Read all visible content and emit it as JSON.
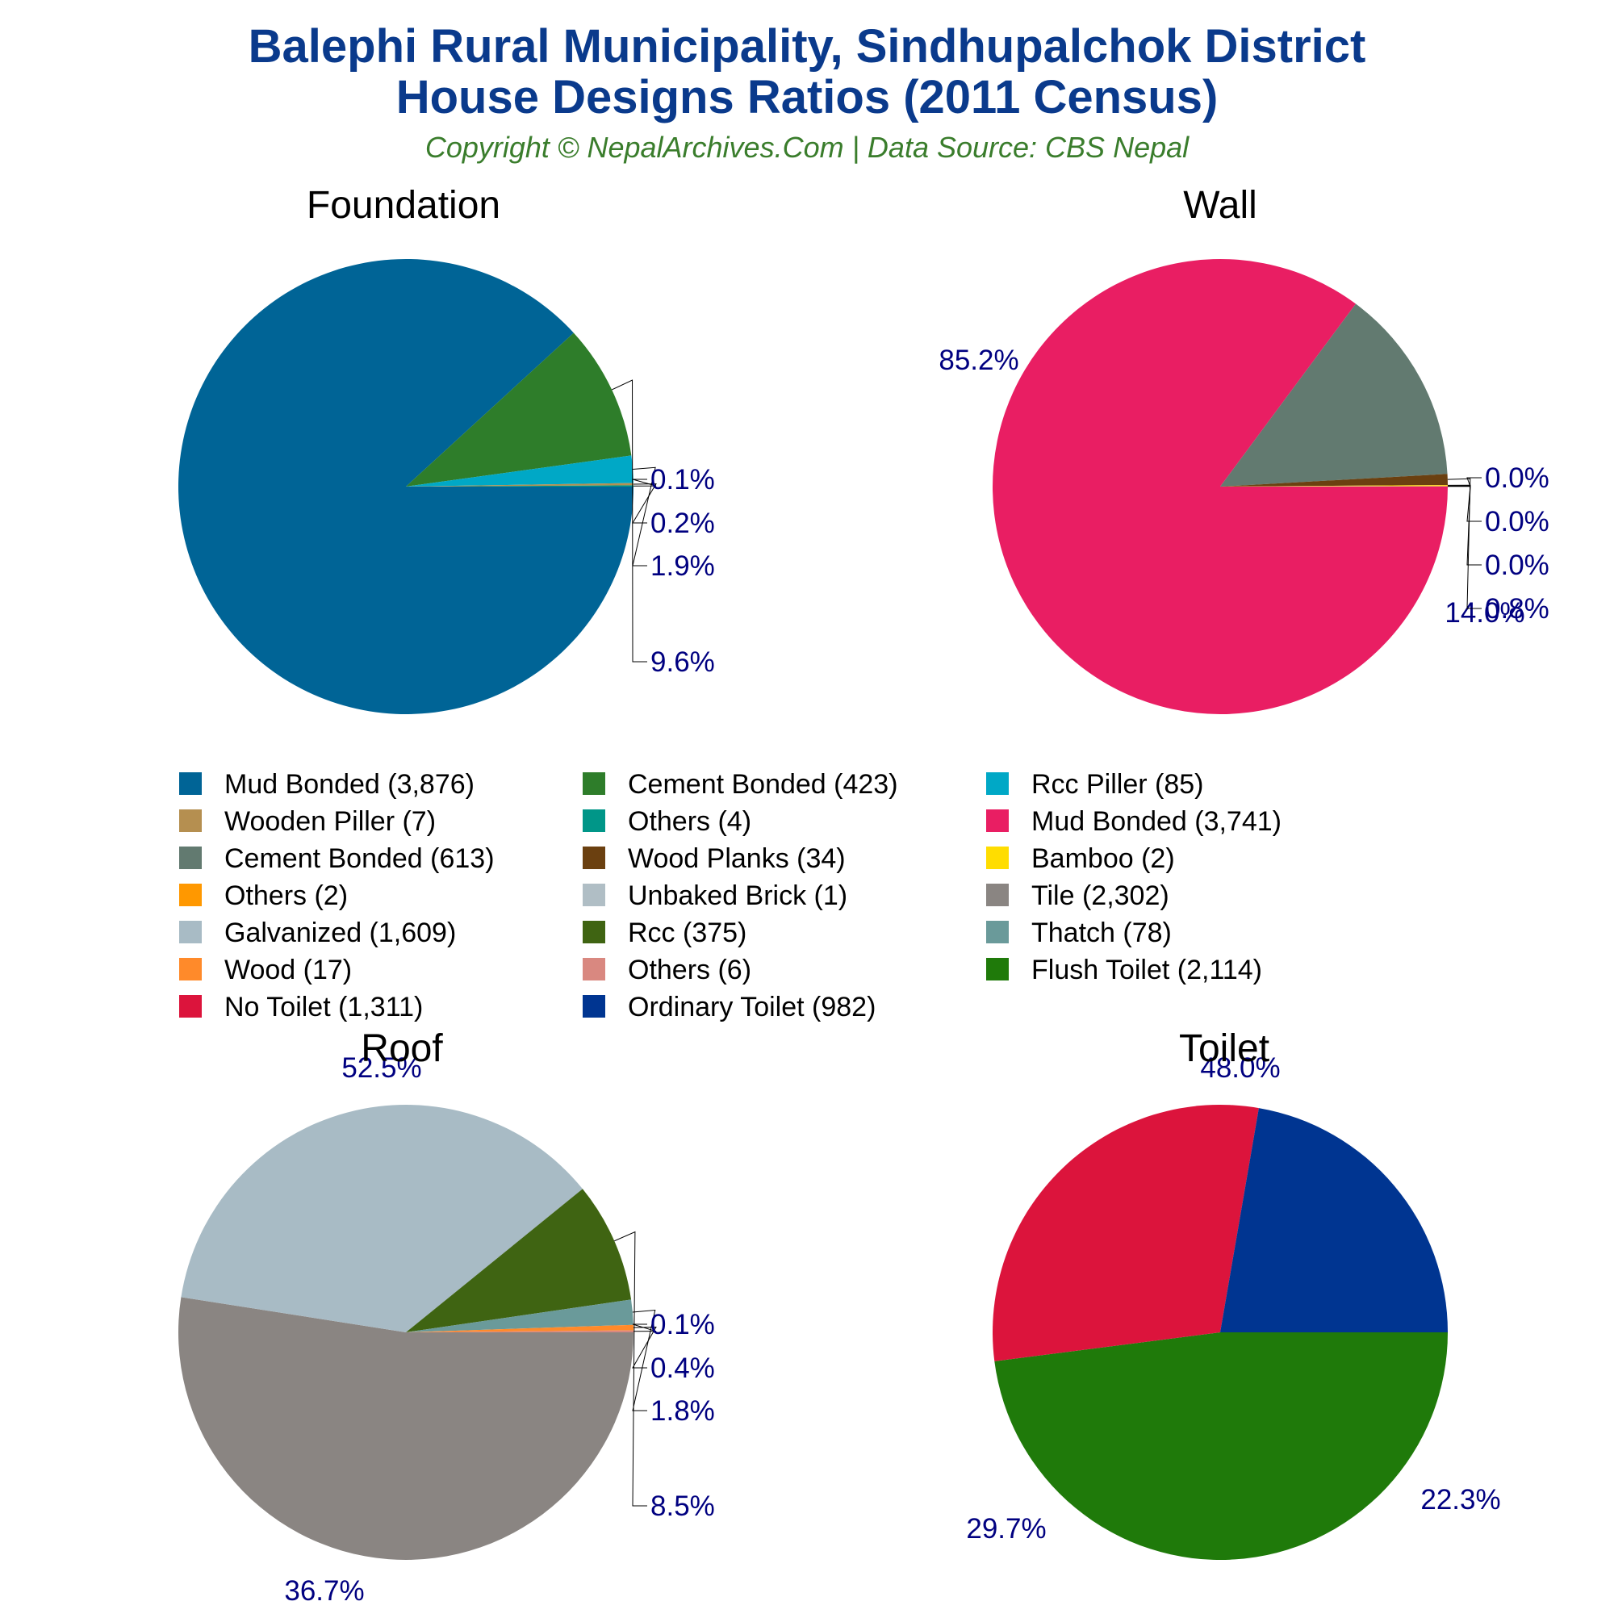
{
  "title_line1": "Balephi Rural Municipality, Sindhupalchok District",
  "title_line2": "House Designs Ratios (2011 Census)",
  "subtitle": "Copyright © NepalArchives.Com | Data Source: CBS Nepal",
  "colors": {
    "title": "#0a3a8c",
    "subtitle": "#3a7d2c",
    "percent": "#000080"
  },
  "chart_data": [
    {
      "type": "pie",
      "title": "Foundation",
      "slices": [
        {
          "label": "Mud Bonded (3,876)",
          "value": 3876,
          "percent": "88.2%",
          "color": "#006496"
        },
        {
          "label": "Cement Bonded (423)",
          "value": 423,
          "percent": "9.6%",
          "color": "#2e7d2a"
        },
        {
          "label": "Rcc Piller (85)",
          "value": 85,
          "percent": "1.9%",
          "color": "#00a8c6"
        },
        {
          "label": "Wooden Piller (7)",
          "value": 7,
          "percent": "0.2%",
          "color": "#b58f50"
        },
        {
          "label": "Others (4)",
          "value": 4,
          "percent": "0.1%",
          "color": "#009688"
        }
      ]
    },
    {
      "type": "pie",
      "title": "Wall",
      "slices": [
        {
          "label": "Mud Bonded (3,741)",
          "value": 3741,
          "percent": "85.2%",
          "color": "#e91e63"
        },
        {
          "label": "Cement Bonded (613)",
          "value": 613,
          "percent": "14.0%",
          "color": "#627a70"
        },
        {
          "label": "Wood Planks (34)",
          "value": 34,
          "percent": "0.8%",
          "color": "#6b4010"
        },
        {
          "label": "Bamboo (2)",
          "value": 2,
          "percent": "0.0%",
          "color": "#ffdd00"
        },
        {
          "label": "Others (2)",
          "value": 2,
          "percent": "0.0%",
          "color": "#ff9800"
        },
        {
          "label": "Unbaked Brick (1)",
          "value": 1,
          "percent": "0.0%",
          "color": "#b0bec5"
        }
      ]
    },
    {
      "type": "pie",
      "title": "Roof",
      "slices": [
        {
          "label": "Tile (2,302)",
          "value": 2302,
          "percent": "52.5%",
          "color": "#8a8582"
        },
        {
          "label": "Galvanized (1,609)",
          "value": 1609,
          "percent": "36.7%",
          "color": "#a8bbc5"
        },
        {
          "label": "Rcc (375)",
          "value": 375,
          "percent": "8.5%",
          "color": "#3f6412"
        },
        {
          "label": "Thatch (78)",
          "value": 78,
          "percent": "1.8%",
          "color": "#6a9a9a"
        },
        {
          "label": "Wood (17)",
          "value": 17,
          "percent": "0.4%",
          "color": "#ff8a2a"
        },
        {
          "label": "Others (6)",
          "value": 6,
          "percent": "0.1%",
          "color": "#d98880"
        }
      ]
    },
    {
      "type": "pie",
      "title": "Toilet",
      "slices": [
        {
          "label": "Flush Toilet (2,114)",
          "value": 2114,
          "percent": "48.0%",
          "color": "#1f7a0a"
        },
        {
          "label": "No Toilet (1,311)",
          "value": 1311,
          "percent": "29.7%",
          "color": "#dc143c"
        },
        {
          "label": "Ordinary Toilet (982)",
          "value": 982,
          "percent": "22.3%",
          "color": "#003591"
        }
      ]
    }
  ],
  "legend": [
    {
      "label": "Mud Bonded (3,876)",
      "color": "#006496"
    },
    {
      "label": "Cement Bonded (423)",
      "color": "#2e7d2a"
    },
    {
      "label": "Rcc Piller (85)",
      "color": "#00a8c6"
    },
    {
      "label": "Wooden Piller (7)",
      "color": "#b58f50"
    },
    {
      "label": "Others (4)",
      "color": "#009688"
    },
    {
      "label": "Mud Bonded (3,741)",
      "color": "#e91e63"
    },
    {
      "label": "Cement Bonded (613)",
      "color": "#627a70"
    },
    {
      "label": "Wood Planks (34)",
      "color": "#6b4010"
    },
    {
      "label": "Bamboo (2)",
      "color": "#ffdd00"
    },
    {
      "label": "Others (2)",
      "color": "#ff9800"
    },
    {
      "label": "Unbaked Brick (1)",
      "color": "#b0bec5"
    },
    {
      "label": "Tile (2,302)",
      "color": "#8a8582"
    },
    {
      "label": "Galvanized (1,609)",
      "color": "#a8bbc5"
    },
    {
      "label": "Rcc (375)",
      "color": "#3f6412"
    },
    {
      "label": "Thatch (78)",
      "color": "#6a9a9a"
    },
    {
      "label": "Wood (17)",
      "color": "#ff8a2a"
    },
    {
      "label": "Others (6)",
      "color": "#d98880"
    },
    {
      "label": "Flush Toilet (2,114)",
      "color": "#1f7a0a"
    },
    {
      "label": "No Toilet (1,311)",
      "color": "#dc143c"
    },
    {
      "label": "Ordinary Toilet (982)",
      "color": "#003591"
    }
  ]
}
